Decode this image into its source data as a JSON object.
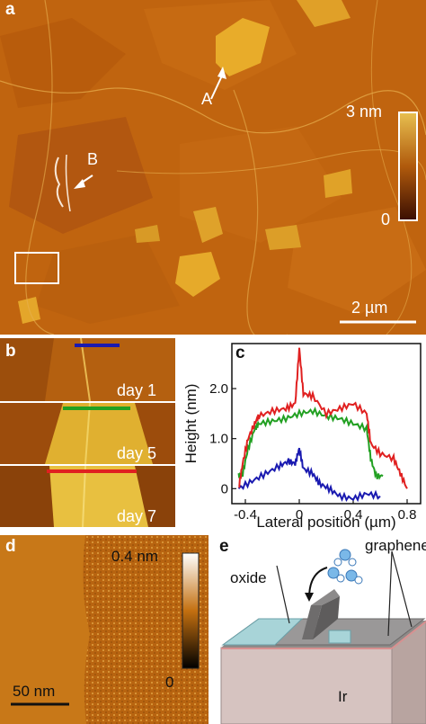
{
  "figure": {
    "panel_a": {
      "label": "a",
      "annotation_a": "A",
      "annotation_b": "B",
      "colorbar_max": "3 nm",
      "colorbar_min": "0",
      "scalebar": "2 µm",
      "colors": {
        "dark": "#4a1a06",
        "mid": "#c8620e",
        "light": "#e8b040"
      }
    },
    "panel_b": {
      "label": "b",
      "rows": [
        {
          "label": "day 1",
          "line_color": "#1a1ab0"
        },
        {
          "label": "day 5",
          "line_color": "#22a022"
        },
        {
          "label": "day 7",
          "line_color": "#e02020"
        }
      ]
    },
    "panel_c": {
      "label": "c",
      "chart_data": {
        "type": "line",
        "xlabel": "Lateral position (µm)",
        "ylabel": "Height (nm)",
        "xlim": [
          -0.5,
          0.9
        ],
        "ylim": [
          -0.3,
          2.9
        ],
        "xticks": [
          "-0.4",
          "0",
          "0.4",
          "0.8"
        ],
        "yticks": [
          "0",
          "1.0",
          "2.0"
        ],
        "series": [
          {
            "color": "#1a1ab0",
            "x": [
              -0.45,
              -0.35,
              -0.25,
              -0.15,
              -0.08,
              -0.03,
              0.0,
              0.03,
              0.1,
              0.15,
              0.22,
              0.3,
              0.4,
              0.5,
              0.6
            ],
            "y": [
              0.0,
              0.15,
              0.3,
              0.45,
              0.55,
              0.5,
              0.8,
              0.4,
              0.3,
              0.1,
              0.0,
              -0.15,
              -0.2,
              -0.1,
              -0.15
            ]
          },
          {
            "color": "#22a022",
            "x": [
              -0.45,
              -0.42,
              -0.38,
              -0.33,
              -0.3,
              -0.2,
              -0.1,
              0.0,
              0.1,
              0.2,
              0.3,
              0.4,
              0.5,
              0.53,
              0.57,
              0.62
            ],
            "y": [
              0.25,
              0.3,
              0.8,
              1.2,
              1.3,
              1.35,
              1.4,
              1.5,
              1.55,
              1.45,
              1.4,
              1.3,
              1.2,
              0.6,
              0.25,
              0.25
            ]
          },
          {
            "color": "#e02020",
            "x": [
              -0.45,
              -0.42,
              -0.38,
              -0.33,
              -0.3,
              -0.2,
              -0.1,
              -0.03,
              0.0,
              0.03,
              0.1,
              0.2,
              0.3,
              0.4,
              0.5,
              0.53,
              0.6,
              0.7,
              0.75,
              0.8
            ],
            "y": [
              0.0,
              0.5,
              1.0,
              1.3,
              1.45,
              1.55,
              1.6,
              1.7,
              2.8,
              1.9,
              1.85,
              1.5,
              1.6,
              1.7,
              1.5,
              0.9,
              0.7,
              0.6,
              0.3,
              0.0
            ]
          }
        ]
      }
    },
    "panel_d": {
      "label": "d",
      "colorbar_max": "0.4 nm",
      "colorbar_min": "0",
      "scalebar": "50 nm"
    },
    "panel_e": {
      "label": "e",
      "label_oxide": "oxide",
      "label_graphene": "graphene",
      "label_substrate": "Ir"
    }
  }
}
